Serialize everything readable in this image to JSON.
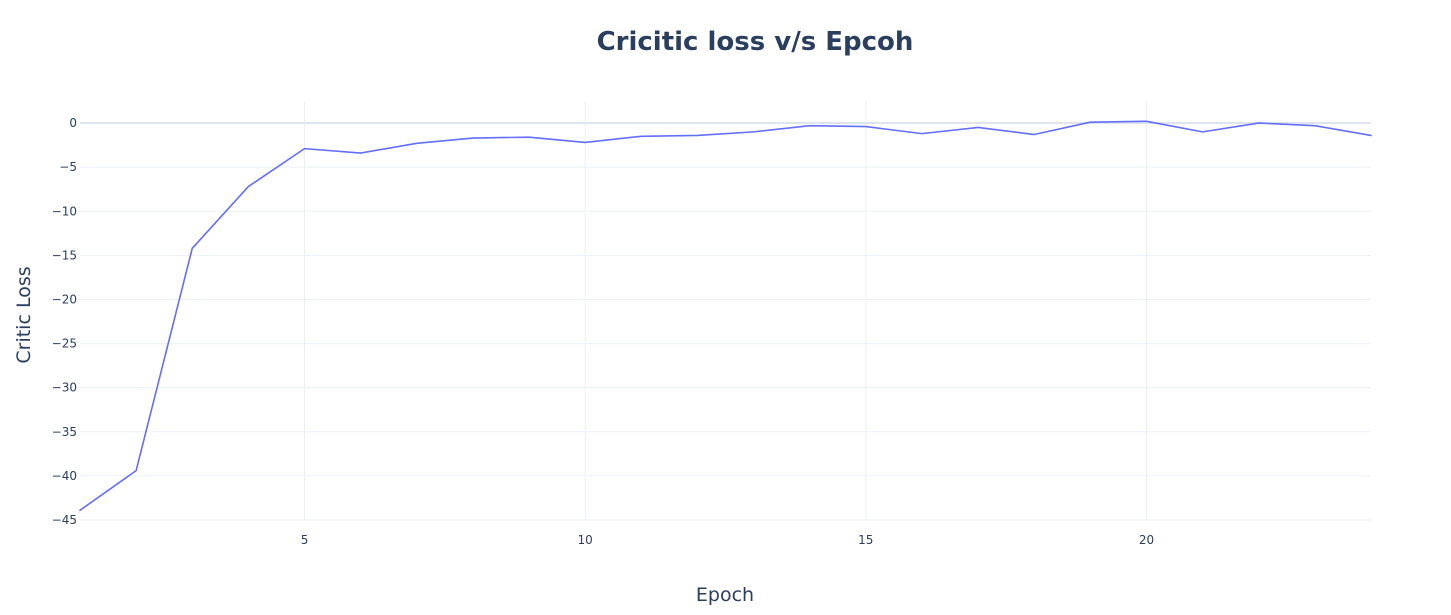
{
  "chart_data": {
    "type": "line",
    "title": "Cricitic loss v/s Epcoh",
    "xlabel": "Epoch",
    "ylabel": "Critic Loss",
    "xlim": [
      1,
      24
    ],
    "ylim": [
      -45,
      2.5
    ],
    "x_ticks": [
      5,
      10,
      15,
      20
    ],
    "y_ticks": [
      0,
      -5,
      -10,
      -15,
      -20,
      -25,
      -30,
      -35,
      -40,
      -45
    ],
    "grid": true,
    "legend": false,
    "series": [
      {
        "x": [
          1,
          2,
          3,
          4,
          5,
          6,
          7,
          8,
          9,
          10,
          11,
          12,
          13,
          14,
          15,
          16,
          17,
          18,
          19,
          20,
          21,
          22,
          23,
          24
        ],
        "values": [
          -43.9,
          -39.4,
          -14.2,
          -7.2,
          -2.9,
          -3.4,
          -2.3,
          -1.7,
          -1.6,
          -2.2,
          -1.5,
          -1.4,
          -1.0,
          -0.3,
          -0.4,
          -1.2,
          -0.5,
          -1.3,
          0.1,
          0.2,
          -1.0,
          0.0,
          -0.3,
          -1.4
        ]
      }
    ]
  },
  "colors": {
    "line": "#636efa",
    "title": "#2a3f5f",
    "grid": "#ebf0f8",
    "zeroline": "#dfe5ef",
    "text": "#2a3f5f"
  }
}
